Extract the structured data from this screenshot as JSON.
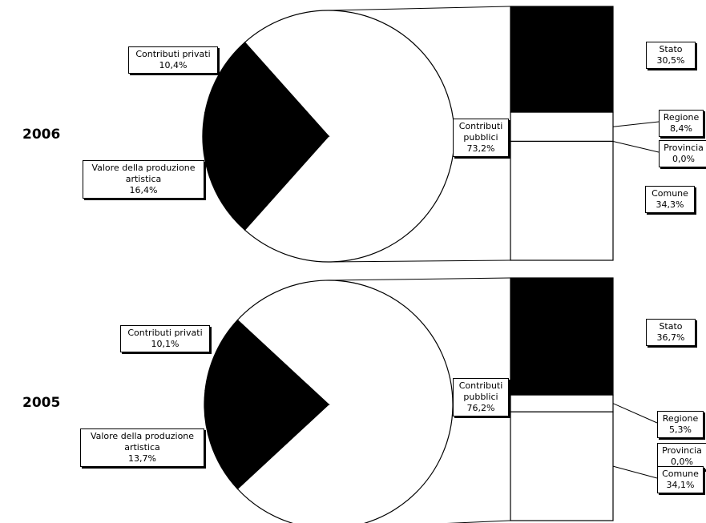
{
  "chart_data": [
    {
      "type": "pie",
      "label": "2006",
      "categories": [
        "Contributi privati",
        "Valore della produzione artistica",
        "Contributi pubblici"
      ],
      "values": [
        10.4,
        16.4,
        73.2
      ],
      "value_labels": [
        "10,4%",
        "16,4%",
        "73,2%"
      ],
      "colors": [
        "#000000",
        "#000000",
        "#ffffff"
      ],
      "breakdown": {
        "categories": [
          "Stato",
          "Regione",
          "Provincia",
          "Comune"
        ],
        "values": [
          30.5,
          8.4,
          0.0,
          34.3
        ],
        "value_labels": [
          "30,5%",
          "8,4%",
          "0,0%",
          "34,3%"
        ],
        "colors": [
          "#000000",
          "#ffffff",
          "#ffffff",
          "#ffffff"
        ]
      }
    },
    {
      "type": "pie",
      "label": "2005",
      "categories": [
        "Contributi privati",
        "Valore della produzione artistica",
        "Contributi pubblici"
      ],
      "values": [
        10.1,
        13.7,
        76.2
      ],
      "value_labels": [
        "10,1%",
        "13,7%",
        "76,2%"
      ],
      "colors": [
        "#000000",
        "#000000",
        "#ffffff"
      ],
      "breakdown": {
        "categories": [
          "Stato",
          "Regione",
          "Provincia",
          "Comune"
        ],
        "values": [
          36.7,
          5.3,
          0.0,
          34.1
        ],
        "value_labels": [
          "36,7%",
          "5,3%",
          "0,0%",
          "34,1%"
        ],
        "colors": [
          "#000000",
          "#ffffff",
          "#ffffff",
          "#ffffff"
        ]
      }
    }
  ]
}
